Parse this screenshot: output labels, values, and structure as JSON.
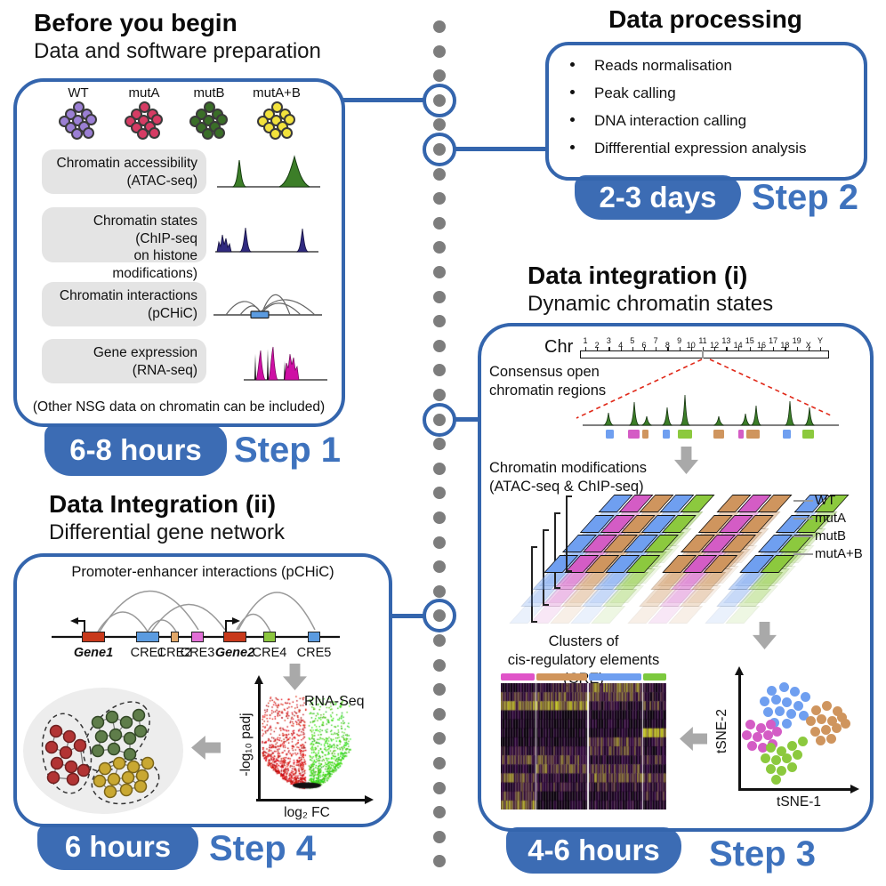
{
  "colors": {
    "accent_blue": "#3465ad",
    "step_text_blue": "#3e72bd",
    "badge_blue": "#3c6cb4",
    "dot_gray": "#7d7d7d",
    "cell_wt": "#9b7fd4",
    "cell_muta": "#d63c64",
    "cell_mutb": "#3a6e28",
    "cell_mutab": "#f2e23c",
    "track_blue": "#6f9ff0",
    "track_magenta": "#d45cc5",
    "track_orange": "#cf955e",
    "track_green": "#8cc93e",
    "peak_green": "#3c7e28",
    "peak_navy": "#302a80",
    "peak_magenta": "#ce10a4",
    "volcano_red": "#cc2020",
    "volcano_green": "#44dd11",
    "net_red": "#b23434",
    "net_green": "#5f7d4a",
    "net_yellow": "#c9a832",
    "gene_red": "#c8391b",
    "cre_blue": "#5b9be0",
    "cre_orange": "#e2a768",
    "cre_pink": "#e26fd6",
    "cre_green": "#8cc63e"
  },
  "step1": {
    "title": "Before you begin",
    "subtitle": "Data and software preparation",
    "cell_groups": [
      {
        "label": "WT",
        "color": "#9b7fd4"
      },
      {
        "label": "mutA",
        "color": "#d63c64"
      },
      {
        "label": "mutB",
        "color": "#3a6e28"
      },
      {
        "label": "mutA+B",
        "color": "#f2e23c"
      }
    ],
    "assays": [
      {
        "lines": [
          "Chromatin accessibility",
          "(ATAC-seq)"
        ]
      },
      {
        "lines": [
          "Chromatin states",
          "(ChIP-seq",
          "on histone modifications)"
        ]
      },
      {
        "lines": [
          "Chromatin interactions",
          "(pCHiC)"
        ]
      },
      {
        "lines": [
          "Gene expression",
          "(RNA-seq)"
        ]
      }
    ],
    "note": "(Other NSG data on chromatin can be included)",
    "duration": "6-8 hours",
    "step": "Step 1"
  },
  "step2": {
    "title": "Data processing",
    "bullets": [
      "Reads normalisation",
      "Peak calling",
      "DNA interaction calling",
      "Diffferential expression analysis"
    ],
    "duration": "2-3 days",
    "step": "Step 2"
  },
  "step3": {
    "title": "Data integration (i)",
    "subtitle": "Dynamic chromatin states",
    "chr_label": "Chr",
    "chromosomes": [
      "1",
      "2",
      "3",
      "4",
      "5",
      "6",
      "7",
      "8",
      "9",
      "10",
      "11",
      "12",
      "13",
      "14",
      "15",
      "16",
      "17",
      "18",
      "19",
      "X",
      "Y"
    ],
    "consensus_lines": [
      "Consensus open",
      "chromatin regions"
    ],
    "modifications_lines": [
      "Chromatin modifications",
      "(ATAC-seq & ChIP-seq)"
    ],
    "genotype_labels": [
      "WT",
      "mutA",
      "mutB",
      "mutA+B"
    ],
    "clusters_lines": [
      "Clusters of",
      "cis-regulatory elements (CRE)"
    ],
    "tsne_x": "tSNE-1",
    "tsne_y": "tSNE-2",
    "duration": "4-6 hours",
    "step": "Step 3"
  },
  "step4": {
    "title": "Data Integration (ii)",
    "subtitle": "Differential gene network",
    "diagram_title": "Promoter-enhancer interactions (pCHiC)",
    "elements": [
      {
        "label": "Gene1",
        "italic": true
      },
      {
        "label": "CRE1",
        "italic": false
      },
      {
        "label": "CRE2",
        "italic": false
      },
      {
        "label": "CRE3",
        "italic": false
      },
      {
        "label": "Gene2",
        "italic": true
      },
      {
        "label": "CRE4",
        "italic": false
      },
      {
        "label": "CRE5",
        "italic": false
      }
    ],
    "volcano_title": "RNA-Seq",
    "volcano_y": "-log₁₀ padj",
    "volcano_x": "log₂ FC",
    "duration": "6 hours",
    "step": "Step 4"
  }
}
